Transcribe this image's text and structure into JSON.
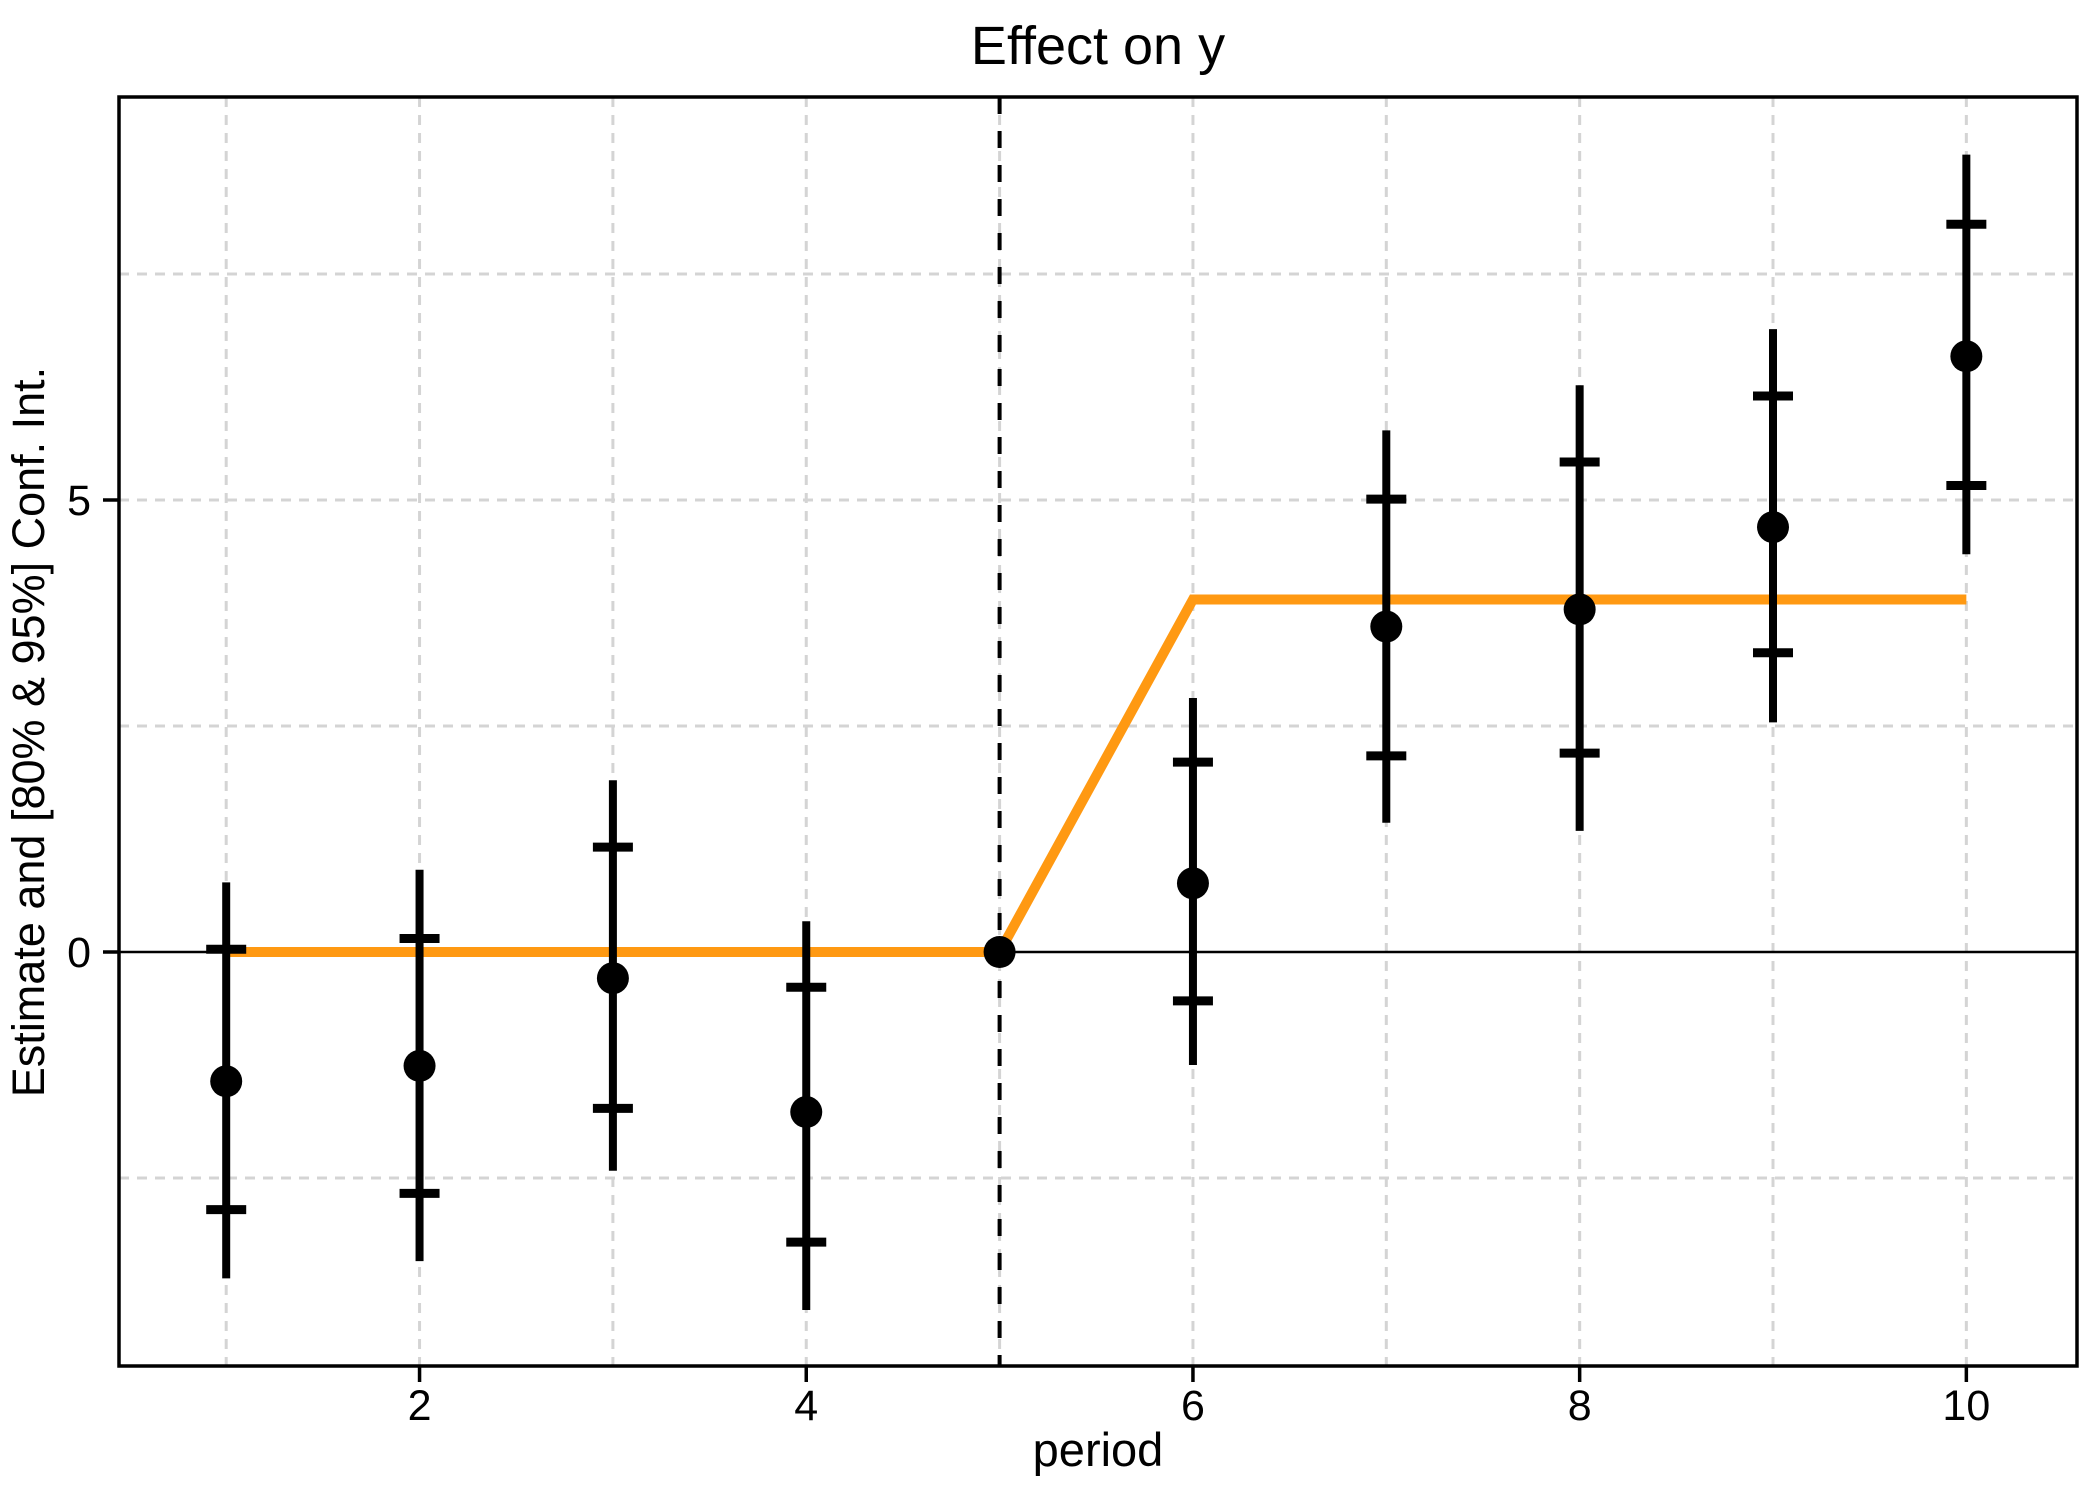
{
  "page": {
    "title": "Effect on y"
  },
  "chart_data": {
    "type": "scatter",
    "subtype": "event-study estimates with error bars and true-effect step line",
    "title": "Effect on y",
    "xlabel": "period",
    "ylabel": "Estimate and [80% & 95%] Conf. Int.",
    "x_ticks": [
      2,
      4,
      6,
      8,
      10
    ],
    "y_ticks": [
      0,
      5
    ],
    "grid_x": [
      1,
      2,
      3,
      4,
      5,
      6,
      7,
      8,
      9,
      10
    ],
    "grid_y": [
      7.5,
      5,
      2.5,
      -2.5
    ],
    "xlim": [
      0.45,
      10.57
    ],
    "ylim": [
      -4.6,
      9.45
    ],
    "grid_style": "dashed",
    "legend": "none",
    "reference_hline_y": 0,
    "treatment_vline_x": 5,
    "estimates": [
      {
        "period": 1,
        "estimate": -1.43,
        "ci80": [
          -2.85,
          0.03
        ],
        "ci95": [
          -3.61,
          0.77
        ],
        "reference": false
      },
      {
        "period": 2,
        "estimate": -1.26,
        "ci80": [
          -2.67,
          0.15
        ],
        "ci95": [
          -3.42,
          0.91
        ],
        "reference": false
      },
      {
        "period": 3,
        "estimate": -0.29,
        "ci80": [
          -1.73,
          1.16
        ],
        "ci95": [
          -2.42,
          1.9
        ],
        "reference": false
      },
      {
        "period": 4,
        "estimate": -1.77,
        "ci80": [
          -3.21,
          -0.39
        ],
        "ci95": [
          -3.96,
          0.34
        ],
        "reference": false
      },
      {
        "period": 5,
        "estimate": 0.0,
        "ci80": null,
        "ci95": null,
        "reference": true
      },
      {
        "period": 6,
        "estimate": 0.76,
        "ci80": [
          -0.54,
          2.1
        ],
        "ci95": [
          -1.25,
          2.81
        ],
        "reference": false
      },
      {
        "period": 7,
        "estimate": 3.6,
        "ci80": [
          2.17,
          5.01
        ],
        "ci95": [
          1.43,
          5.77
        ],
        "reference": false
      },
      {
        "period": 8,
        "estimate": 3.79,
        "ci80": [
          2.2,
          5.42
        ],
        "ci95": [
          1.34,
          6.27
        ],
        "reference": false
      },
      {
        "period": 9,
        "estimate": 4.7,
        "ci80": [
          3.31,
          6.15
        ],
        "ci95": [
          2.54,
          6.89
        ],
        "reference": false
      },
      {
        "period": 10,
        "estimate": 6.59,
        "ci80": [
          5.16,
          8.05
        ],
        "ci95": [
          4.4,
          8.82
        ],
        "reference": false
      }
    ],
    "true_effect_line": {
      "points": [
        [
          1,
          0
        ],
        [
          5,
          0
        ],
        [
          6,
          3.9
        ],
        [
          10,
          3.9
        ]
      ]
    },
    "colors": {
      "estimate": "#000000",
      "true_effect": "#FF9912",
      "grid": "#D4D4D4",
      "axis": "#000000",
      "background": "#FFFFFF"
    }
  }
}
